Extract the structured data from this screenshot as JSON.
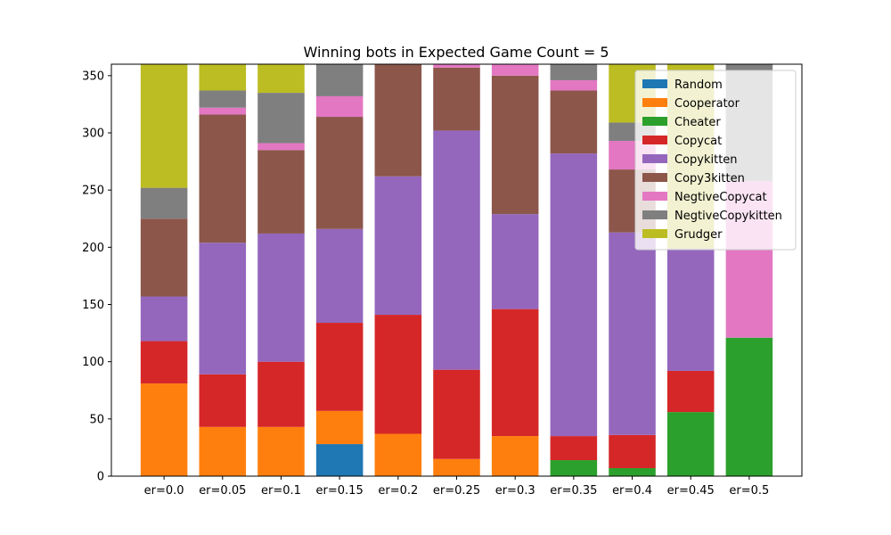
{
  "chart_data": {
    "type": "bar",
    "stacked": true,
    "title": "Winning bots in Expected Game Count = 5",
    "xlabel": "",
    "ylabel": "",
    "ylim": [
      0,
      360
    ],
    "yticks": [
      0,
      50,
      100,
      150,
      200,
      250,
      300,
      350
    ],
    "grid": false,
    "legend_position": "top-right",
    "categories": [
      "er=0.0",
      "er=0.05",
      "er=0.1",
      "er=0.15",
      "er=0.2",
      "er=0.25",
      "er=0.3",
      "er=0.35",
      "er=0.4",
      "er=0.45",
      "er=0.5"
    ],
    "series": [
      {
        "name": "Random",
        "color": "#1f77b4",
        "values": [
          0,
          0,
          0,
          28,
          0,
          0,
          0,
          0,
          0,
          0,
          0
        ]
      },
      {
        "name": "Cooperator",
        "color": "#ff7f0e",
        "values": [
          81,
          43,
          43,
          29,
          37,
          15,
          35,
          0,
          0,
          0,
          0
        ]
      },
      {
        "name": "Cheater",
        "color": "#2ca02c",
        "values": [
          0,
          0,
          0,
          0,
          0,
          0,
          0,
          14,
          7,
          56,
          121
        ]
      },
      {
        "name": "Copycat",
        "color": "#d62728",
        "values": [
          37,
          46,
          57,
          77,
          104,
          78,
          111,
          21,
          29,
          36,
          0
        ]
      },
      {
        "name": "Copykitten",
        "color": "#9467bd",
        "values": [
          39,
          115,
          112,
          82,
          121,
          209,
          83,
          247,
          177,
          107,
          0
        ]
      },
      {
        "name": "Copy3kitten",
        "color": "#8c564b",
        "values": [
          68,
          112,
          73,
          98,
          98,
          55,
          121,
          55,
          55,
          0,
          0
        ]
      },
      {
        "name": "NegtiveCopycat",
        "color": "#e377c2",
        "values": [
          0,
          6,
          6,
          18,
          0,
          3,
          10,
          9,
          25,
          0,
          137
        ]
      },
      {
        "name": "NegtiveCopykitten",
        "color": "#7f7f7f",
        "values": [
          27,
          15,
          44,
          28,
          0,
          0,
          14,
          14,
          16,
          0,
          102
        ]
      },
      {
        "name": "Grudger",
        "color": "#bcbd22",
        "values": [
          108,
          23,
          25,
          0,
          0,
          0,
          0,
          0,
          51,
          161,
          0
        ]
      }
    ]
  }
}
